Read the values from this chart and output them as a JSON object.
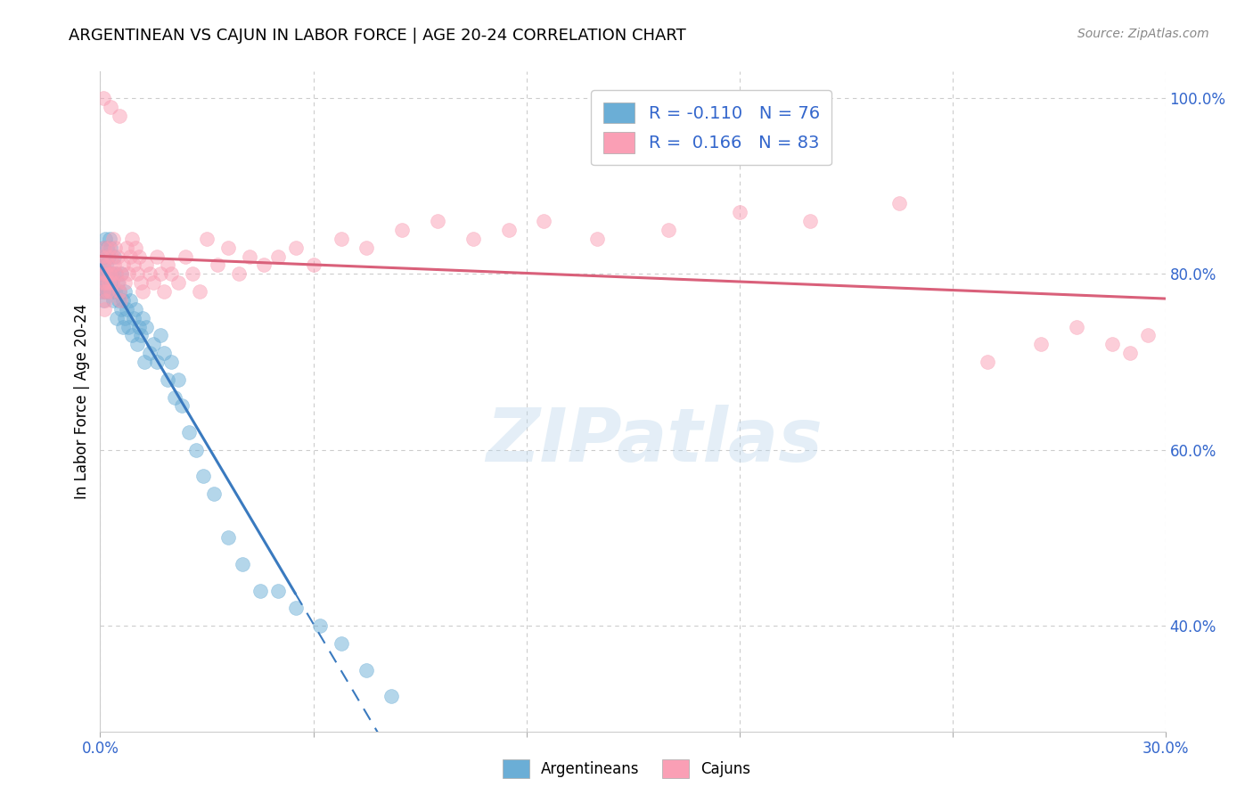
{
  "title": "ARGENTINEAN VS CAJUN IN LABOR FORCE | AGE 20-24 CORRELATION CHART",
  "source": "Source: ZipAtlas.com",
  "ylabel": "In Labor Force | Age 20-24",
  "right_yticks": [
    40.0,
    60.0,
    80.0,
    100.0
  ],
  "x_min": 0.0,
  "x_max": 30.0,
  "y_min": 28.0,
  "y_max": 103.0,
  "blue_color": "#6baed6",
  "pink_color": "#fa9fb5",
  "trend_blue": "#3a7abf",
  "trend_pink": "#d9607a",
  "watermark": "ZIPatlas",
  "blue_r": "-0.110",
  "blue_n": "76",
  "pink_r": "0.166",
  "pink_n": "83",
  "blue_trend_solid_end": 5.5,
  "blue_x": [
    0.05,
    0.05,
    0.07,
    0.08,
    0.08,
    0.09,
    0.1,
    0.1,
    0.11,
    0.12,
    0.13,
    0.14,
    0.15,
    0.16,
    0.17,
    0.18,
    0.2,
    0.21,
    0.22,
    0.23,
    0.25,
    0.27,
    0.28,
    0.3,
    0.31,
    0.33,
    0.35,
    0.37,
    0.4,
    0.42,
    0.45,
    0.47,
    0.5,
    0.52,
    0.55,
    0.58,
    0.6,
    0.63,
    0.65,
    0.68,
    0.7,
    0.75,
    0.8,
    0.85,
    0.9,
    0.95,
    1.0,
    1.05,
    1.1,
    1.15,
    1.2,
    1.25,
    1.3,
    1.4,
    1.5,
    1.6,
    1.7,
    1.8,
    1.9,
    2.0,
    2.1,
    2.2,
    2.3,
    2.5,
    2.7,
    2.9,
    3.2,
    3.6,
    4.0,
    4.5,
    5.0,
    5.5,
    6.2,
    6.8,
    7.5,
    8.2
  ],
  "blue_y": [
    78,
    80,
    82,
    79,
    77,
    81,
    80,
    83,
    78,
    79,
    82,
    84,
    80,
    78,
    81,
    79,
    83,
    80,
    78,
    82,
    80,
    84,
    79,
    83,
    80,
    78,
    79,
    77,
    82,
    78,
    80,
    75,
    79,
    77,
    78,
    76,
    80,
    74,
    77,
    75,
    78,
    76,
    74,
    77,
    73,
    75,
    76,
    72,
    74,
    73,
    75,
    70,
    74,
    71,
    72,
    70,
    73,
    71,
    68,
    70,
    66,
    68,
    65,
    62,
    60,
    57,
    55,
    50,
    47,
    44,
    44,
    42,
    40,
    38,
    35,
    32
  ],
  "pink_x": [
    0.05,
    0.06,
    0.08,
    0.09,
    0.1,
    0.11,
    0.12,
    0.14,
    0.15,
    0.17,
    0.18,
    0.2,
    0.22,
    0.24,
    0.25,
    0.27,
    0.29,
    0.31,
    0.33,
    0.35,
    0.37,
    0.4,
    0.42,
    0.45,
    0.48,
    0.51,
    0.54,
    0.57,
    0.6,
    0.65,
    0.7,
    0.75,
    0.8,
    0.85,
    0.9,
    0.95,
    1.0,
    1.05,
    1.1,
    1.15,
    1.2,
    1.3,
    1.4,
    1.5,
    1.6,
    1.7,
    1.8,
    1.9,
    2.0,
    2.2,
    2.4,
    2.6,
    2.8,
    3.0,
    3.3,
    3.6,
    3.9,
    4.2,
    4.6,
    5.0,
    5.5,
    6.0,
    6.8,
    7.5,
    8.5,
    9.5,
    10.5,
    11.5,
    12.5,
    14.0,
    16.0,
    18.0,
    20.0,
    22.5,
    25.0,
    26.5,
    27.5,
    28.5,
    29.0,
    29.5,
    0.08,
    0.3,
    0.55
  ],
  "pink_y": [
    82,
    79,
    78,
    81,
    80,
    76,
    83,
    79,
    77,
    80,
    82,
    78,
    81,
    79,
    83,
    80,
    78,
    82,
    80,
    79,
    84,
    81,
    83,
    80,
    82,
    79,
    78,
    77,
    80,
    81,
    79,
    83,
    80,
    82,
    84,
    81,
    83,
    80,
    82,
    79,
    78,
    81,
    80,
    79,
    82,
    80,
    78,
    81,
    80,
    79,
    82,
    80,
    78,
    84,
    81,
    83,
    80,
    82,
    81,
    82,
    83,
    81,
    84,
    83,
    85,
    86,
    84,
    85,
    86,
    84,
    85,
    87,
    86,
    88,
    70,
    72,
    74,
    72,
    71,
    73,
    100,
    99,
    98
  ]
}
